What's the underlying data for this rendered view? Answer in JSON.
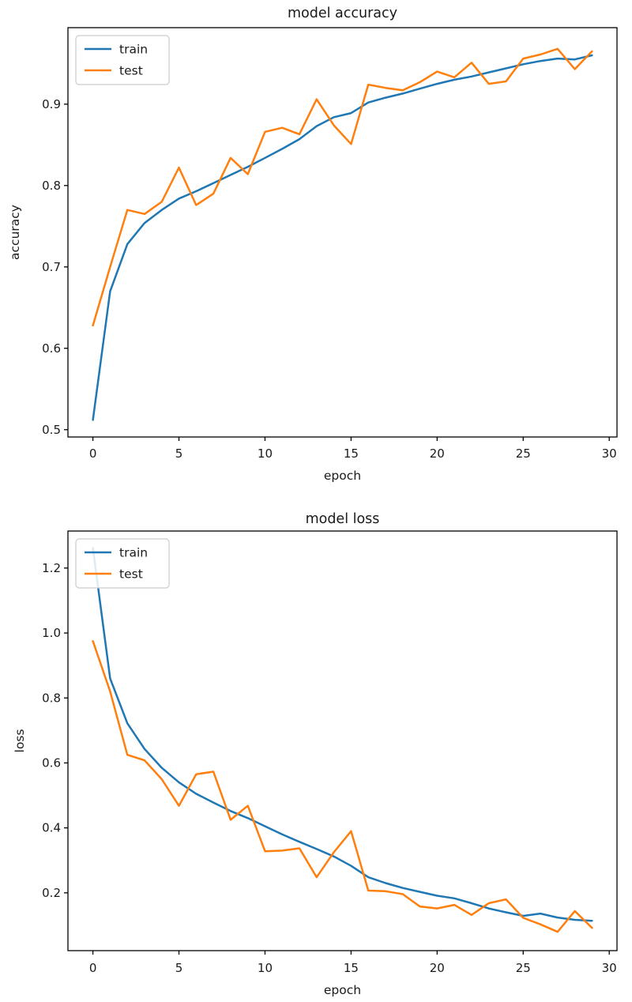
{
  "page": {
    "background": "#ffffff"
  },
  "chart_data": [
    {
      "type": "line",
      "title": "model accuracy",
      "xlabel": "epoch",
      "ylabel": "accuracy",
      "grid": false,
      "legend": {
        "position": "upper left",
        "entries": [
          "train",
          "test"
        ]
      },
      "xlim": [
        -1.45,
        30.45
      ],
      "ylim": [
        0.491,
        0.994
      ],
      "xticks": [
        0,
        5,
        10,
        15,
        20,
        25,
        30
      ],
      "xtick_labels": [
        "0",
        "5",
        "10",
        "15",
        "20",
        "25",
        "30"
      ],
      "yticks": [
        0.5,
        0.6,
        0.7,
        0.8,
        0.9
      ],
      "ytick_labels": [
        "0.5",
        "0.6",
        "0.7",
        "0.8",
        "0.9"
      ],
      "x": [
        0,
        1,
        2,
        3,
        4,
        5,
        6,
        7,
        8,
        9,
        10,
        11,
        12,
        13,
        14,
        15,
        16,
        17,
        18,
        19,
        20,
        21,
        22,
        23,
        24,
        25,
        26,
        27,
        28,
        29
      ],
      "series": [
        {
          "name": "train",
          "color": "#1f77b4",
          "values": [
            0.512,
            0.67,
            0.728,
            0.754,
            0.77,
            0.784,
            0.793,
            0.803,
            0.813,
            0.823,
            0.834,
            0.845,
            0.857,
            0.873,
            0.884,
            0.889,
            0.902,
            0.908,
            0.913,
            0.919,
            0.925,
            0.93,
            0.934,
            0.939,
            0.944,
            0.949,
            0.953,
            0.956,
            0.955,
            0.96
          ]
        },
        {
          "name": "test",
          "color": "#ff7f0e",
          "values": [
            0.628,
            0.7,
            0.77,
            0.765,
            0.78,
            0.822,
            0.776,
            0.79,
            0.834,
            0.814,
            0.866,
            0.871,
            0.863,
            0.906,
            0.874,
            0.851,
            0.924,
            0.92,
            0.917,
            0.927,
            0.94,
            0.933,
            0.951,
            0.925,
            0.928,
            0.956,
            0.961,
            0.968,
            0.943,
            0.965
          ]
        }
      ]
    },
    {
      "type": "line",
      "title": "model loss",
      "xlabel": "epoch",
      "ylabel": "loss",
      "grid": false,
      "legend": {
        "position": "upper left",
        "entries": [
          "train",
          "test"
        ]
      },
      "xlim": [
        -1.45,
        30.45
      ],
      "ylim": [
        0.022,
        1.314
      ],
      "xticks": [
        0,
        5,
        10,
        15,
        20,
        25,
        30
      ],
      "xtick_labels": [
        "0",
        "5",
        "10",
        "15",
        "20",
        "25",
        "30"
      ],
      "yticks": [
        0.2,
        0.4,
        0.6,
        0.8,
        1.0,
        1.2
      ],
      "ytick_labels": [
        "0.2",
        "0.4",
        "0.6",
        "0.8",
        "1.0",
        "1.2"
      ],
      "x": [
        0,
        1,
        2,
        3,
        4,
        5,
        6,
        7,
        8,
        9,
        10,
        11,
        12,
        13,
        14,
        15,
        16,
        17,
        18,
        19,
        20,
        21,
        22,
        23,
        24,
        25,
        26,
        27,
        28,
        29
      ],
      "series": [
        {
          "name": "train",
          "color": "#1f77b4",
          "values": [
            1.262,
            0.86,
            0.722,
            0.643,
            0.585,
            0.54,
            0.505,
            0.478,
            0.452,
            0.43,
            0.405,
            0.38,
            0.357,
            0.335,
            0.312,
            0.283,
            0.248,
            0.23,
            0.215,
            0.203,
            0.191,
            0.183,
            0.168,
            0.152,
            0.14,
            0.129,
            0.136,
            0.124,
            0.117,
            0.114
          ]
        },
        {
          "name": "test",
          "color": "#ff7f0e",
          "values": [
            0.975,
            0.82,
            0.625,
            0.608,
            0.55,
            0.468,
            0.565,
            0.573,
            0.425,
            0.468,
            0.328,
            0.33,
            0.337,
            0.248,
            0.325,
            0.39,
            0.207,
            0.205,
            0.196,
            0.158,
            0.152,
            0.163,
            0.132,
            0.168,
            0.18,
            0.123,
            0.103,
            0.08,
            0.144,
            0.092
          ]
        }
      ]
    }
  ]
}
